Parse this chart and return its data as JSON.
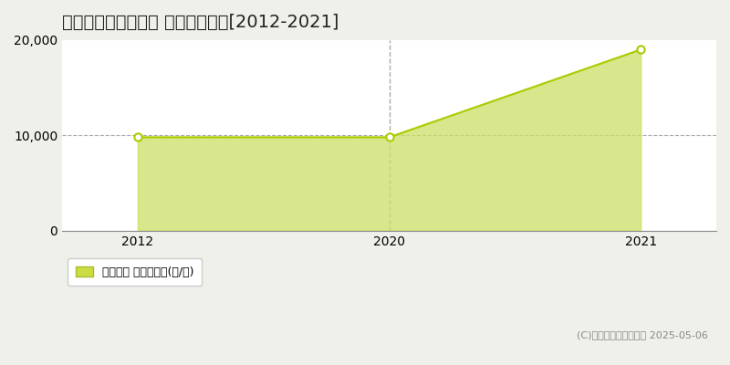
{
  "title": "加茂郡川辺町上川辺 農地価格推移[2012-2021]",
  "x_values": [
    0,
    1,
    2
  ],
  "x_labels": [
    "2012",
    "2020",
    "2021"
  ],
  "y_values": [
    9800,
    9800,
    19000
  ],
  "line_color": "#aacc00",
  "fill_color": "#cce066",
  "fill_alpha": 0.75,
  "marker_color": "white",
  "marker_edge_color": "#aacc00",
  "marker_size": 6,
  "xlim": [
    -0.3,
    2.3
  ],
  "ylim": [
    0,
    20000
  ],
  "yticks": [
    0,
    10000,
    20000
  ],
  "vline_x": 1,
  "hline_y": 10000,
  "vline_color": "#aaaaaa",
  "hline_color": "#aaaaaa",
  "legend_label": "農地価格 平均坪単価(円/坪)",
  "legend_color": "#ccdd44",
  "copyright_text": "(C)土地価格ドットコム 2025-05-06",
  "background_color": "#f0f0ea",
  "plot_bg_color": "#ffffff",
  "title_fontsize": 14,
  "tick_fontsize": 10,
  "legend_fontsize": 9,
  "copyright_fontsize": 8
}
